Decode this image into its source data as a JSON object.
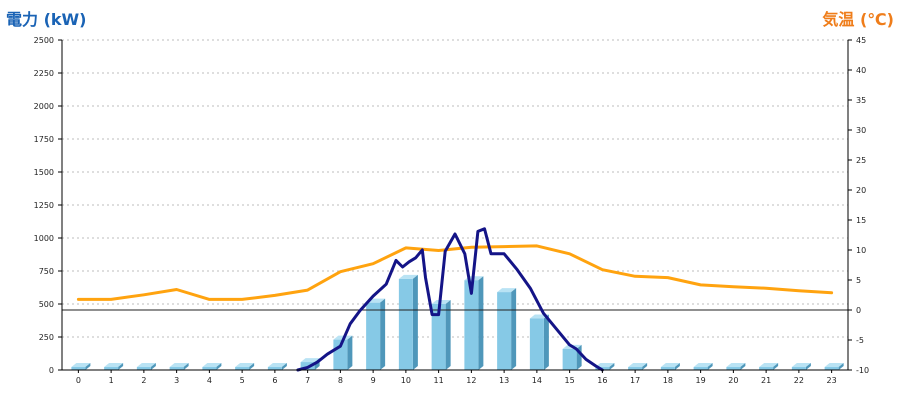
{
  "chart_data": {
    "type": "bar",
    "title": "",
    "ylabel_left": "電力 (kW)",
    "ylabel_right": "気温 (℃)",
    "xlabel": "",
    "categories": [
      "0",
      "1",
      "2",
      "3",
      "4",
      "5",
      "6",
      "7",
      "8",
      "9",
      "10",
      "11",
      "12",
      "13",
      "14",
      "15",
      "16",
      "17",
      "18",
      "19",
      "20",
      "21",
      "22",
      "23"
    ],
    "y_left": {
      "min": 0,
      "max": 2500,
      "ticks": [
        "0",
        "250",
        "500",
        "750",
        "1000",
        "1250",
        "1500",
        "1750",
        "2000",
        "2250",
        "2500"
      ]
    },
    "y_right": {
      "min": -10,
      "max": 45,
      "ticks": [
        "-10",
        "-5",
        "0",
        "5",
        "10",
        "15",
        "20",
        "25",
        "30",
        "35",
        "40",
        "45"
      ]
    },
    "grid": true,
    "series": [
      {
        "kind": "bar",
        "axis": "left",
        "color": "#86c9e6",
        "values": [
          0,
          0,
          0,
          0,
          0,
          0,
          0,
          60,
          230,
          510,
          690,
          500,
          680,
          590,
          390,
          160,
          0,
          0,
          0,
          0,
          0,
          0,
          0,
          0
        ]
      },
      {
        "kind": "line",
        "axis": "left",
        "color": "#ffa30f",
        "x": [
          0,
          1,
          2,
          3,
          4,
          5,
          6,
          7,
          8,
          9,
          10,
          11,
          12,
          13,
          14,
          15,
          16,
          17,
          18,
          19,
          20,
          21,
          22,
          23
        ],
        "values": [
          535,
          535,
          570,
          610,
          535,
          535,
          565,
          605,
          745,
          805,
          925,
          905,
          930,
          935,
          940,
          880,
          760,
          710,
          700,
          645,
          630,
          620,
          600,
          585
        ]
      },
      {
        "kind": "line",
        "axis": "left",
        "color": "#141487",
        "x": [
          6.7,
          7.0,
          7.3,
          7.6,
          7.8,
          8.0,
          8.3,
          8.6,
          9.0,
          9.4,
          9.7,
          9.9,
          10.1,
          10.3,
          10.5,
          10.6,
          10.8,
          11.0,
          11.2,
          11.5,
          11.8,
          12.0,
          12.2,
          12.4,
          12.6,
          13.0,
          13.4,
          13.8,
          14.2,
          14.6,
          15.0,
          15.2,
          15.5,
          15.8,
          16.0
        ],
        "values": [
          0,
          20,
          60,
          120,
          150,
          180,
          350,
          450,
          560,
          650,
          830,
          780,
          820,
          850,
          910,
          700,
          420,
          420,
          900,
          1030,
          880,
          580,
          1050,
          1070,
          880,
          880,
          760,
          620,
          430,
          310,
          190,
          160,
          80,
          30,
          0
        ]
      }
    ],
    "reference_line": {
      "axis": "right",
      "value": 0
    }
  }
}
